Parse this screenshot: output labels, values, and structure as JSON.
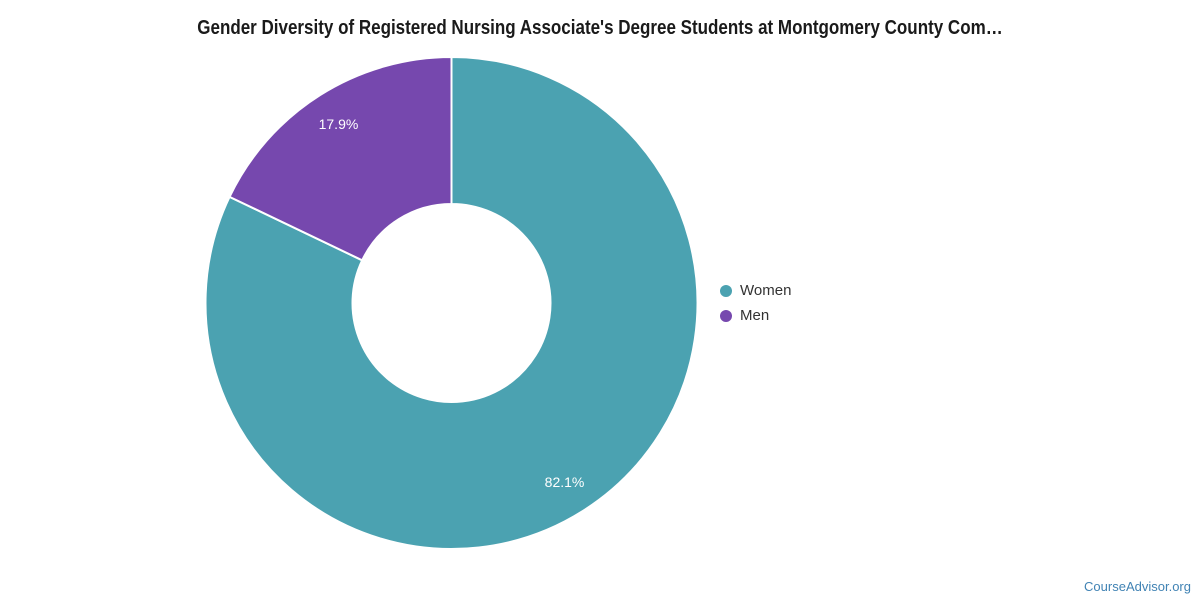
{
  "title": "Gender Diversity of Registered Nursing Associate's Degree Students at Montgomery County Com…",
  "chart_data": {
    "type": "pie",
    "subtype": "donut",
    "categories": [
      "Women",
      "Men"
    ],
    "values": [
      82.1,
      17.9
    ],
    "value_labels": [
      "82.1%",
      "17.9%"
    ],
    "colors": [
      "#4BA2B1",
      "#7648AE"
    ],
    "title": "Gender Diversity of Registered Nursing Associate's Degree Students at Montgomery County Com…",
    "legend_position": "right",
    "inner_radius_pct": 40,
    "start_angle_deg": 0,
    "direction": "clockwise",
    "slice_border_color": "#FFFFFF"
  },
  "legend": {
    "items": [
      {
        "label": "Women"
      },
      {
        "label": "Men"
      }
    ]
  },
  "footer": {
    "link_label": "CourseAdvisor.org",
    "link_color": "#4183B4"
  },
  "colors": {
    "background": "#FFFFFF",
    "title_text": "#1A1A1A",
    "slice_label_text": "#FFFFFF",
    "legend_text": "#333333"
  }
}
